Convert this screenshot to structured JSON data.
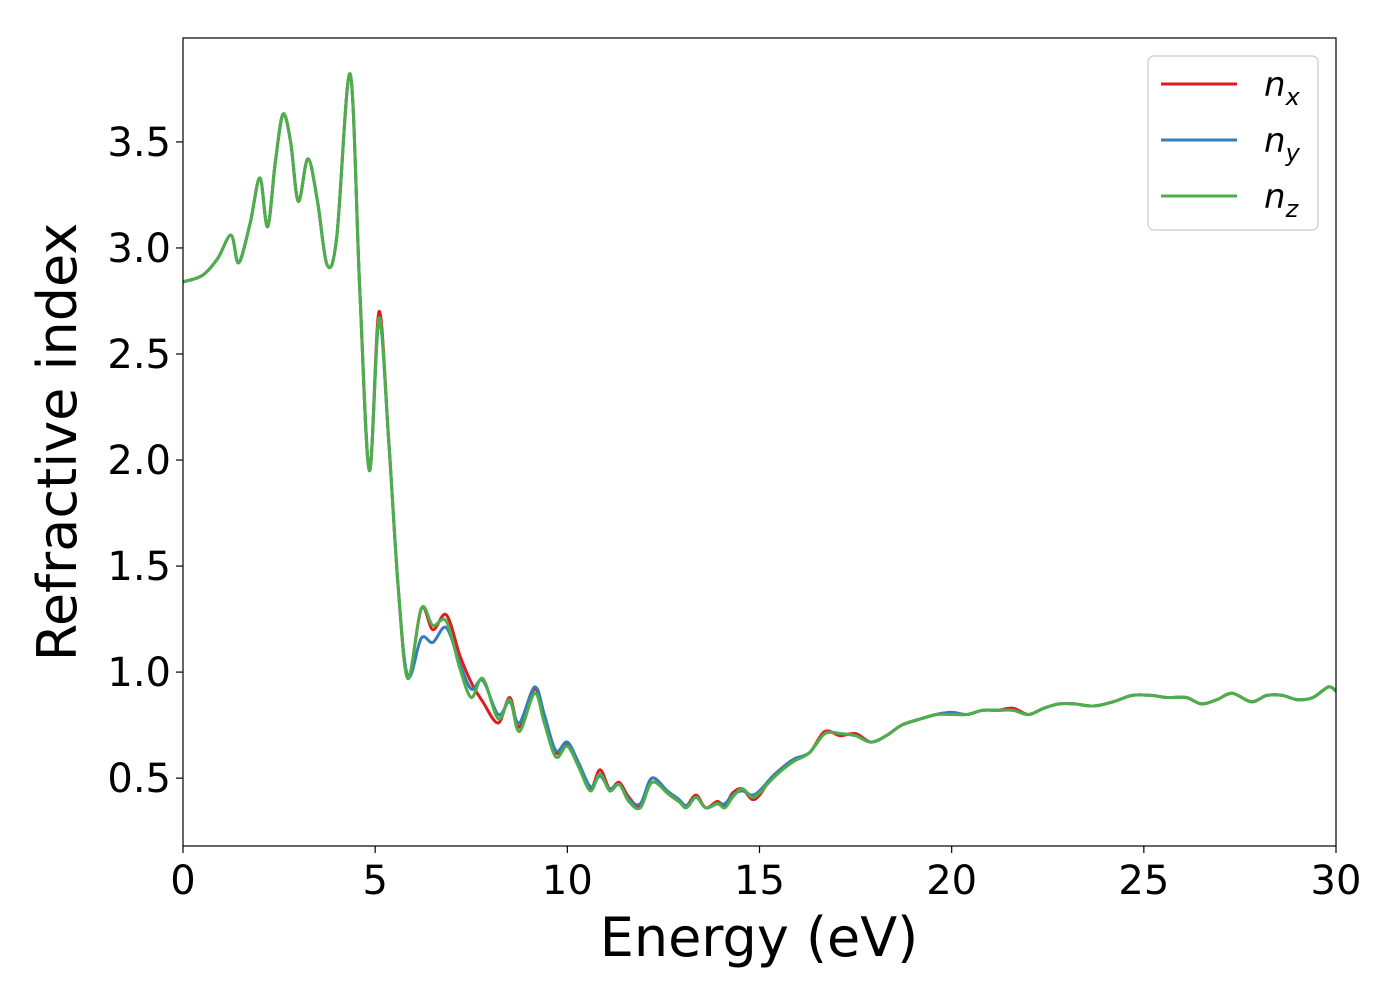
{
  "chart_data": {
    "type": "line",
    "title": "",
    "xlabel": "Energy (eV)",
    "ylabel": "Refractive index",
    "xlim": [
      0,
      30
    ],
    "ylim": [
      0.18,
      3.99
    ],
    "xticks": [
      0,
      5,
      10,
      15,
      20,
      25,
      30
    ],
    "xtick_labels": [
      "0",
      "5",
      "10",
      "15",
      "20",
      "25",
      "30"
    ],
    "yticks": [
      0.5,
      1.0,
      1.5,
      2.0,
      2.5,
      3.0,
      3.5
    ],
    "ytick_labels": [
      "0.5",
      "1.0",
      "1.5",
      "2.0",
      "2.5",
      "3.0",
      "3.5"
    ],
    "grid": false,
    "legend_position": "top-right",
    "series": [
      {
        "name": "n_x",
        "legend_base": "n",
        "legend_sub": "x",
        "color": "#e31a1c",
        "points": [
          [
            0,
            2.84
          ],
          [
            0.5,
            2.87
          ],
          [
            0.9,
            2.95
          ],
          [
            1.25,
            3.06
          ],
          [
            1.45,
            2.93
          ],
          [
            1.75,
            3.12
          ],
          [
            2.0,
            3.33
          ],
          [
            2.2,
            3.1
          ],
          [
            2.4,
            3.4
          ],
          [
            2.6,
            3.63
          ],
          [
            2.8,
            3.5
          ],
          [
            3.0,
            3.22
          ],
          [
            3.25,
            3.42
          ],
          [
            3.5,
            3.22
          ],
          [
            3.75,
            2.92
          ],
          [
            4.0,
            3.05
          ],
          [
            4.35,
            3.82
          ],
          [
            4.6,
            2.8
          ],
          [
            4.85,
            1.95
          ],
          [
            5.1,
            2.7
          ],
          [
            5.35,
            2.1
          ],
          [
            5.6,
            1.4
          ],
          [
            5.85,
            0.97
          ],
          [
            6.2,
            1.3
          ],
          [
            6.5,
            1.2
          ],
          [
            6.85,
            1.27
          ],
          [
            7.2,
            1.08
          ],
          [
            7.5,
            0.95
          ],
          [
            7.8,
            0.86
          ],
          [
            8.2,
            0.76
          ],
          [
            8.5,
            0.88
          ],
          [
            8.75,
            0.74
          ],
          [
            9.15,
            0.92
          ],
          [
            9.4,
            0.78
          ],
          [
            9.7,
            0.62
          ],
          [
            10.0,
            0.66
          ],
          [
            10.3,
            0.56
          ],
          [
            10.6,
            0.45
          ],
          [
            10.85,
            0.54
          ],
          [
            11.1,
            0.45
          ],
          [
            11.35,
            0.48
          ],
          [
            11.6,
            0.41
          ],
          [
            11.9,
            0.37
          ],
          [
            12.2,
            0.5
          ],
          [
            12.6,
            0.43
          ],
          [
            12.9,
            0.39
          ],
          [
            13.1,
            0.37
          ],
          [
            13.35,
            0.42
          ],
          [
            13.6,
            0.36
          ],
          [
            13.9,
            0.39
          ],
          [
            14.1,
            0.37
          ],
          [
            14.3,
            0.43
          ],
          [
            14.55,
            0.45
          ],
          [
            14.8,
            0.4
          ],
          [
            15.0,
            0.42
          ],
          [
            15.3,
            0.5
          ],
          [
            15.6,
            0.55
          ],
          [
            15.9,
            0.59
          ],
          [
            16.3,
            0.62
          ],
          [
            16.7,
            0.72
          ],
          [
            17.1,
            0.7
          ],
          [
            17.5,
            0.71
          ],
          [
            17.9,
            0.67
          ],
          [
            18.3,
            0.7
          ],
          [
            18.7,
            0.75
          ],
          [
            19.2,
            0.78
          ],
          [
            19.6,
            0.8
          ],
          [
            20.0,
            0.81
          ],
          [
            20.4,
            0.8
          ],
          [
            20.8,
            0.82
          ],
          [
            21.2,
            0.82
          ],
          [
            21.6,
            0.83
          ],
          [
            22.0,
            0.8
          ],
          [
            22.4,
            0.83
          ],
          [
            22.8,
            0.85
          ],
          [
            23.2,
            0.85
          ],
          [
            23.7,
            0.84
          ],
          [
            24.2,
            0.86
          ],
          [
            24.7,
            0.89
          ],
          [
            25.2,
            0.89
          ],
          [
            25.6,
            0.88
          ],
          [
            26.1,
            0.88
          ],
          [
            26.5,
            0.85
          ],
          [
            26.9,
            0.87
          ],
          [
            27.3,
            0.9
          ],
          [
            27.8,
            0.86
          ],
          [
            28.2,
            0.89
          ],
          [
            28.6,
            0.89
          ],
          [
            29.0,
            0.87
          ],
          [
            29.4,
            0.88
          ],
          [
            29.8,
            0.93
          ],
          [
            30.0,
            0.91
          ]
        ]
      },
      {
        "name": "n_y",
        "legend_base": "n",
        "legend_sub": "y",
        "color": "#377eb8",
        "points": [
          [
            0,
            2.84
          ],
          [
            0.5,
            2.87
          ],
          [
            0.9,
            2.95
          ],
          [
            1.25,
            3.06
          ],
          [
            1.45,
            2.93
          ],
          [
            1.75,
            3.12
          ],
          [
            2.0,
            3.33
          ],
          [
            2.2,
            3.1
          ],
          [
            2.4,
            3.4
          ],
          [
            2.6,
            3.63
          ],
          [
            2.8,
            3.5
          ],
          [
            3.0,
            3.22
          ],
          [
            3.25,
            3.42
          ],
          [
            3.5,
            3.22
          ],
          [
            3.75,
            2.92
          ],
          [
            4.0,
            3.05
          ],
          [
            4.35,
            3.82
          ],
          [
            4.6,
            2.8
          ],
          [
            4.85,
            1.95
          ],
          [
            5.1,
            2.66
          ],
          [
            5.35,
            2.1
          ],
          [
            5.6,
            1.4
          ],
          [
            5.85,
            0.98
          ],
          [
            6.2,
            1.16
          ],
          [
            6.5,
            1.14
          ],
          [
            6.85,
            1.21
          ],
          [
            7.2,
            1.04
          ],
          [
            7.5,
            0.92
          ],
          [
            7.8,
            0.96
          ],
          [
            8.2,
            0.8
          ],
          [
            8.5,
            0.86
          ],
          [
            8.75,
            0.76
          ],
          [
            9.15,
            0.93
          ],
          [
            9.4,
            0.8
          ],
          [
            9.7,
            0.63
          ],
          [
            10.0,
            0.67
          ],
          [
            10.3,
            0.57
          ],
          [
            10.6,
            0.46
          ],
          [
            10.85,
            0.51
          ],
          [
            11.1,
            0.45
          ],
          [
            11.35,
            0.47
          ],
          [
            11.6,
            0.4
          ],
          [
            11.9,
            0.38
          ],
          [
            12.2,
            0.5
          ],
          [
            12.6,
            0.44
          ],
          [
            12.9,
            0.4
          ],
          [
            13.1,
            0.37
          ],
          [
            13.35,
            0.41
          ],
          [
            13.6,
            0.36
          ],
          [
            13.9,
            0.38
          ],
          [
            14.1,
            0.38
          ],
          [
            14.3,
            0.42
          ],
          [
            14.55,
            0.44
          ],
          [
            14.8,
            0.42
          ],
          [
            15.0,
            0.44
          ],
          [
            15.3,
            0.5
          ],
          [
            15.6,
            0.55
          ],
          [
            15.9,
            0.59
          ],
          [
            16.3,
            0.62
          ],
          [
            16.7,
            0.71
          ],
          [
            17.1,
            0.71
          ],
          [
            17.5,
            0.7
          ],
          [
            17.9,
            0.67
          ],
          [
            18.3,
            0.7
          ],
          [
            18.7,
            0.75
          ],
          [
            19.2,
            0.78
          ],
          [
            19.6,
            0.8
          ],
          [
            20.0,
            0.81
          ],
          [
            20.4,
            0.8
          ],
          [
            20.8,
            0.82
          ],
          [
            21.2,
            0.82
          ],
          [
            21.6,
            0.82
          ],
          [
            22.0,
            0.8
          ],
          [
            22.4,
            0.83
          ],
          [
            22.8,
            0.85
          ],
          [
            23.2,
            0.85
          ],
          [
            23.7,
            0.84
          ],
          [
            24.2,
            0.86
          ],
          [
            24.7,
            0.89
          ],
          [
            25.2,
            0.89
          ],
          [
            25.6,
            0.88
          ],
          [
            26.1,
            0.88
          ],
          [
            26.5,
            0.85
          ],
          [
            26.9,
            0.87
          ],
          [
            27.3,
            0.9
          ],
          [
            27.8,
            0.86
          ],
          [
            28.2,
            0.89
          ],
          [
            28.6,
            0.89
          ],
          [
            29.0,
            0.87
          ],
          [
            29.4,
            0.88
          ],
          [
            29.8,
            0.93
          ],
          [
            30.0,
            0.91
          ]
        ]
      },
      {
        "name": "n_z",
        "legend_base": "n",
        "legend_sub": "z",
        "color": "#4daf4a",
        "points": [
          [
            0,
            2.84
          ],
          [
            0.5,
            2.87
          ],
          [
            0.9,
            2.95
          ],
          [
            1.25,
            3.06
          ],
          [
            1.45,
            2.93
          ],
          [
            1.75,
            3.12
          ],
          [
            2.0,
            3.33
          ],
          [
            2.2,
            3.1
          ],
          [
            2.4,
            3.4
          ],
          [
            2.6,
            3.63
          ],
          [
            2.8,
            3.5
          ],
          [
            3.0,
            3.22
          ],
          [
            3.25,
            3.42
          ],
          [
            3.5,
            3.22
          ],
          [
            3.75,
            2.92
          ],
          [
            4.0,
            3.05
          ],
          [
            4.35,
            3.82
          ],
          [
            4.6,
            2.8
          ],
          [
            4.85,
            1.95
          ],
          [
            5.1,
            2.67
          ],
          [
            5.35,
            2.1
          ],
          [
            5.6,
            1.4
          ],
          [
            5.85,
            0.97
          ],
          [
            6.2,
            1.3
          ],
          [
            6.5,
            1.22
          ],
          [
            6.85,
            1.24
          ],
          [
            7.2,
            1.02
          ],
          [
            7.5,
            0.88
          ],
          [
            7.8,
            0.97
          ],
          [
            8.2,
            0.78
          ],
          [
            8.5,
            0.87
          ],
          [
            8.75,
            0.72
          ],
          [
            9.15,
            0.9
          ],
          [
            9.4,
            0.76
          ],
          [
            9.7,
            0.6
          ],
          [
            10.0,
            0.65
          ],
          [
            10.3,
            0.55
          ],
          [
            10.6,
            0.44
          ],
          [
            10.85,
            0.52
          ],
          [
            11.1,
            0.44
          ],
          [
            11.35,
            0.47
          ],
          [
            11.6,
            0.39
          ],
          [
            11.9,
            0.36
          ],
          [
            12.2,
            0.48
          ],
          [
            12.6,
            0.43
          ],
          [
            12.9,
            0.39
          ],
          [
            13.1,
            0.36
          ],
          [
            13.35,
            0.41
          ],
          [
            13.6,
            0.36
          ],
          [
            13.9,
            0.38
          ],
          [
            14.1,
            0.36
          ],
          [
            14.3,
            0.41
          ],
          [
            14.55,
            0.45
          ],
          [
            14.8,
            0.41
          ],
          [
            15.0,
            0.43
          ],
          [
            15.3,
            0.49
          ],
          [
            15.6,
            0.54
          ],
          [
            15.9,
            0.58
          ],
          [
            16.3,
            0.62
          ],
          [
            16.7,
            0.71
          ],
          [
            17.1,
            0.71
          ],
          [
            17.5,
            0.7
          ],
          [
            17.9,
            0.67
          ],
          [
            18.3,
            0.7
          ],
          [
            18.7,
            0.75
          ],
          [
            19.2,
            0.78
          ],
          [
            19.6,
            0.8
          ],
          [
            20.0,
            0.8
          ],
          [
            20.4,
            0.8
          ],
          [
            20.8,
            0.82
          ],
          [
            21.2,
            0.82
          ],
          [
            21.6,
            0.82
          ],
          [
            22.0,
            0.8
          ],
          [
            22.4,
            0.83
          ],
          [
            22.8,
            0.85
          ],
          [
            23.2,
            0.85
          ],
          [
            23.7,
            0.84
          ],
          [
            24.2,
            0.86
          ],
          [
            24.7,
            0.89
          ],
          [
            25.2,
            0.89
          ],
          [
            25.6,
            0.88
          ],
          [
            26.1,
            0.88
          ],
          [
            26.5,
            0.85
          ],
          [
            26.9,
            0.87
          ],
          [
            27.3,
            0.9
          ],
          [
            27.8,
            0.86
          ],
          [
            28.2,
            0.89
          ],
          [
            28.6,
            0.89
          ],
          [
            29.0,
            0.87
          ],
          [
            29.4,
            0.88
          ],
          [
            29.8,
            0.93
          ],
          [
            30.0,
            0.91
          ]
        ]
      }
    ]
  }
}
